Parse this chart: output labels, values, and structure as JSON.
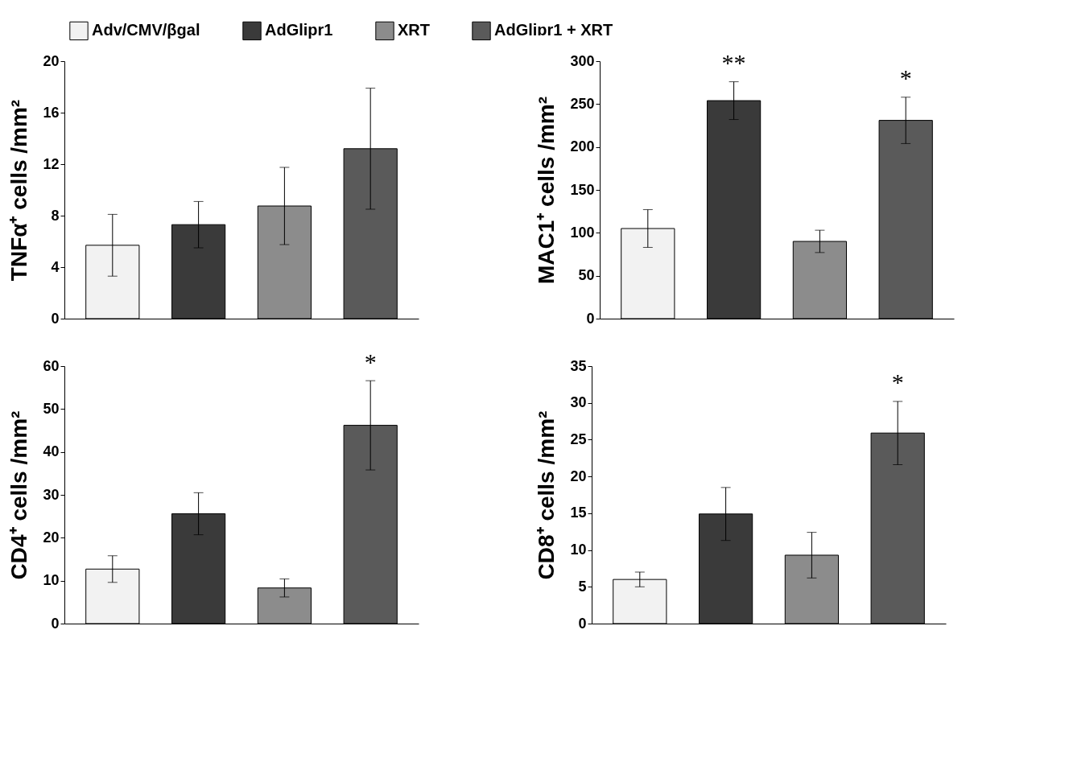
{
  "chart_data": [
    {
      "type": "bar",
      "ylabel": "TNFα⁺ cells /mm²",
      "categories": [
        null,
        null,
        null,
        null
      ],
      "ylim": [
        0,
        20
      ],
      "yticks": [
        0,
        4,
        8,
        12,
        16,
        20
      ],
      "legend": "top",
      "series": [
        {
          "name": "Adv/CMV/βgal",
          "color": "#f2f2f2",
          "values": [
            5.7,
            null,
            null,
            null
          ],
          "errors": [
            2.4,
            null,
            null,
            null
          ]
        },
        {
          "name": "AdGlipr1",
          "color": "#3a3a3a",
          "values": [
            null,
            7.3,
            null,
            null
          ],
          "errors": [
            null,
            1.8,
            null,
            null
          ]
        },
        {
          "name": "XRT",
          "color": "#8c8c8c",
          "values": [
            null,
            null,
            8.75,
            null
          ],
          "errors": [
            null,
            null,
            3,
            null
          ]
        },
        {
          "name": "AdGlipr1 + XRT",
          "color": "#5a5a5a",
          "values": [
            null,
            null,
            null,
            13.2
          ],
          "errors": [
            null,
            null,
            null,
            4.7
          ]
        }
      ]
    },
    {
      "type": "bar",
      "ylabel": "MAC1⁺ cells /mm²",
      "categories": [
        null,
        null,
        null,
        null
      ],
      "ylim": [
        0,
        300
      ],
      "yticks": [
        0,
        50,
        100,
        150,
        200,
        250,
        300
      ],
      "annotations": [
        "**",
        "*"
      ],
      "series": [
        {
          "color": "#f2f2f2",
          "values": [
            105,
            null,
            null,
            null
          ],
          "errors": [
            22,
            null,
            null,
            null
          ]
        },
        {
          "color": "#3a3a3a",
          "values": [
            null,
            254,
            null,
            null
          ],
          "errors": [
            null,
            22,
            null,
            null
          ]
        },
        {
          "color": "#8c8c8c",
          "values": [
            null,
            null,
            90,
            null
          ],
          "errors": [
            null,
            null,
            13,
            null
          ]
        },
        {
          "color": "#5a5a5a",
          "values": [
            null,
            null,
            null,
            231
          ],
          "errors": [
            null,
            null,
            null,
            27
          ]
        }
      ]
    },
    {
      "type": "bar",
      "ylabel": "CD4⁺ cells /mm²",
      "categories": [
        null,
        null,
        null,
        null
      ],
      "ylim": [
        0,
        60
      ],
      "yticks": [
        0,
        10,
        20,
        30,
        40,
        50,
        60
      ],
      "annotations": [
        "*"
      ],
      "series": [
        {
          "color": "#f2f2f2",
          "values": [
            12.7,
            null,
            null,
            null
          ],
          "errors": [
            3.1,
            null,
            null,
            null
          ]
        },
        {
          "color": "#3a3a3a",
          "values": [
            null,
            25.6,
            null,
            null
          ],
          "errors": [
            null,
            4.9,
            null,
            null
          ]
        },
        {
          "color": "#8c8c8c",
          "values": [
            null,
            null,
            8.3,
            null
          ],
          "errors": [
            null,
            null,
            2.1,
            null
          ]
        },
        {
          "color": "#5a5a5a",
          "values": [
            null,
            null,
            null,
            46.2
          ],
          "errors": [
            null,
            null,
            null,
            10.4
          ]
        }
      ]
    },
    {
      "type": "bar",
      "ylabel": "CD8⁺ cells /mm²",
      "categories": [
        null,
        null,
        null,
        null
      ],
      "ylim": [
        0,
        35
      ],
      "yticks": [
        0,
        5,
        10,
        15,
        20,
        25,
        30,
        35
      ],
      "annotations": [
        "*"
      ],
      "series": [
        {
          "color": "#f2f2f2",
          "values": [
            6.0,
            null,
            null,
            null
          ],
          "errors": [
            1.0,
            null,
            null,
            null
          ]
        },
        {
          "color": "#3a3a3a",
          "values": [
            null,
            14.9,
            null,
            null
          ],
          "errors": [
            null,
            3.6,
            null,
            null
          ]
        },
        {
          "color": "#8c8c8c",
          "values": [
            null,
            null,
            9.3,
            null
          ],
          "errors": [
            null,
            null,
            3.1,
            null
          ]
        },
        {
          "color": "#5a5a5a",
          "values": [
            null,
            null,
            null,
            25.9
          ],
          "errors": [
            null,
            null,
            null,
            4.3
          ]
        }
      ]
    }
  ]
}
